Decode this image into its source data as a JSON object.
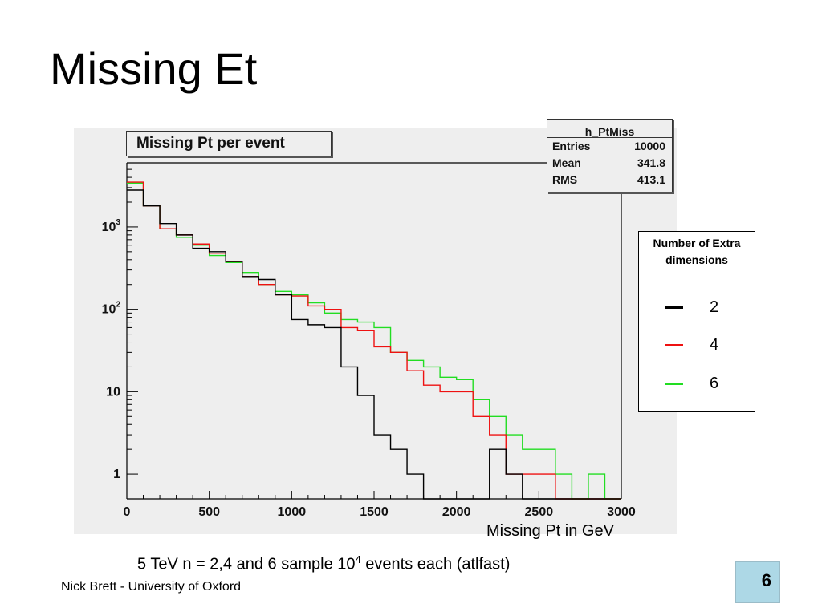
{
  "slide": {
    "title": "Missing Et",
    "xlabel": "Missing Pt in GeV",
    "caption_pre": "5 TeV n = 2,4 and 6 sample 10",
    "caption_sup": "4",
    "caption_post": " events each (atlfast)",
    "footer": "Nick Brett - University of Oxford",
    "page_number": "6"
  },
  "stats": {
    "header": "h_PtMiss",
    "rows": [
      {
        "key": "Entries",
        "value": "10000"
      },
      {
        "key": "Mean",
        "value": "341.8"
      },
      {
        "key": "RMS",
        "value": "413.1"
      }
    ]
  },
  "legend": {
    "title": "Number of Extra dimensions",
    "items": [
      {
        "label": "2",
        "color": "#000000"
      },
      {
        "label": "4",
        "color": "#ee1111"
      },
      {
        "label": "6",
        "color": "#22dd22"
      }
    ]
  },
  "chart_data": {
    "type": "histogram",
    "title": "Missing Pt per event",
    "xlabel": "",
    "ylabel": "",
    "xlim": [
      0,
      3000
    ],
    "yscale": "log",
    "ylim": [
      0.5,
      6000
    ],
    "bin_width": 100,
    "x_ticks": [
      "0",
      "500",
      "1000",
      "1500",
      "2000",
      "2500",
      "3000"
    ],
    "y_ticks": [
      {
        "value": 1,
        "base": "1",
        "exp": ""
      },
      {
        "value": 10,
        "base": "10",
        "exp": ""
      },
      {
        "value": 100,
        "base": "10",
        "exp": "2"
      },
      {
        "value": 1000,
        "base": "10",
        "exp": "3"
      }
    ],
    "series": [
      {
        "name": "2",
        "color": "#000000",
        "values": [
          2800,
          1800,
          1100,
          800,
          550,
          500,
          380,
          250,
          230,
          150,
          75,
          65,
          60,
          20,
          9,
          3,
          2,
          1,
          0,
          0,
          0,
          0,
          2,
          1,
          0,
          0,
          0,
          0,
          0,
          0
        ]
      },
      {
        "name": "4",
        "color": "#ee1111",
        "values": [
          3500,
          1800,
          950,
          800,
          620,
          480,
          380,
          250,
          200,
          150,
          145,
          110,
          100,
          60,
          55,
          35,
          30,
          18,
          12,
          10,
          10,
          5,
          3,
          1,
          1,
          1,
          0,
          0,
          0,
          0
        ]
      },
      {
        "name": "6",
        "color": "#22dd22",
        "values": [
          3400,
          1800,
          950,
          750,
          600,
          450,
          370,
          280,
          200,
          165,
          150,
          120,
          90,
          75,
          70,
          60,
          30,
          24,
          20,
          15,
          14,
          8,
          5,
          3,
          2,
          2,
          1,
          0,
          1,
          0
        ]
      }
    ]
  }
}
